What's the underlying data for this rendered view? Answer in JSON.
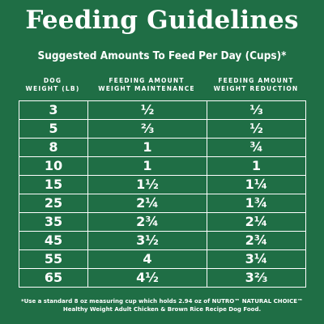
{
  "title": "Feeding Guidelines",
  "subtitle": "Suggested Amounts To Feed Per Day (Cups)*",
  "headers": {
    "col1_line1": "DOG",
    "col1_line2": "WEIGHT (LB)",
    "col2_line1": "FEEDING AMOUNT",
    "col2_line2": "WEIGHT MAINTENANCE",
    "col3_line1": "FEEDING AMOUNT",
    "col3_line2": "WEIGHT REDUCTION"
  },
  "rows": [
    {
      "weight": "3",
      "maintenance": "½",
      "reduction": "⅓"
    },
    {
      "weight": "5",
      "maintenance": "⅔",
      "reduction": "½"
    },
    {
      "weight": "8",
      "maintenance": "1",
      "reduction": "¾"
    },
    {
      "weight": "10",
      "maintenance": "1",
      "reduction": "1"
    },
    {
      "weight": "15",
      "maintenance": "1½",
      "reduction": "1¼"
    },
    {
      "weight": "25",
      "maintenance": "2¼",
      "reduction": "1¾"
    },
    {
      "weight": "35",
      "maintenance": "2¾",
      "reduction": "2¼"
    },
    {
      "weight": "45",
      "maintenance": "3½",
      "reduction": "2¾"
    },
    {
      "weight": "55",
      "maintenance": "4",
      "reduction": "3¼"
    },
    {
      "weight": "65",
      "maintenance": "4½",
      "reduction": "3⅔"
    }
  ],
  "footnote_line1": "*Use a standard 8 oz measuring cup which holds 2.94 oz of NUTRO™ NATURAL CHOICE™",
  "footnote_line2": "Healthy Weight Adult Chicken & Brown Rice Recipe Dog Food.",
  "colors": {
    "background": "#1f6e45",
    "text": "#ffffff",
    "grid_lines": "#ffffff"
  }
}
